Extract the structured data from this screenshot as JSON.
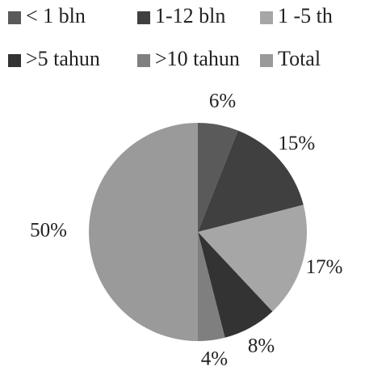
{
  "chart_data": {
    "type": "pie",
    "categories": [
      "< 1 bln",
      "1-12 bln",
      "1 -5 th",
      ">5 tahun",
      ">10 tahun",
      "Total"
    ],
    "values": [
      6,
      15,
      17,
      8,
      4,
      50
    ],
    "value_labels": [
      "6%",
      "15%",
      "17%",
      "8%",
      "4%",
      "50%"
    ],
    "colors": [
      "#5a5a5a",
      "#404040",
      "#a6a6a6",
      "#333333",
      "#7f7f7f",
      "#9a9a9a"
    ],
    "legend": "top"
  }
}
